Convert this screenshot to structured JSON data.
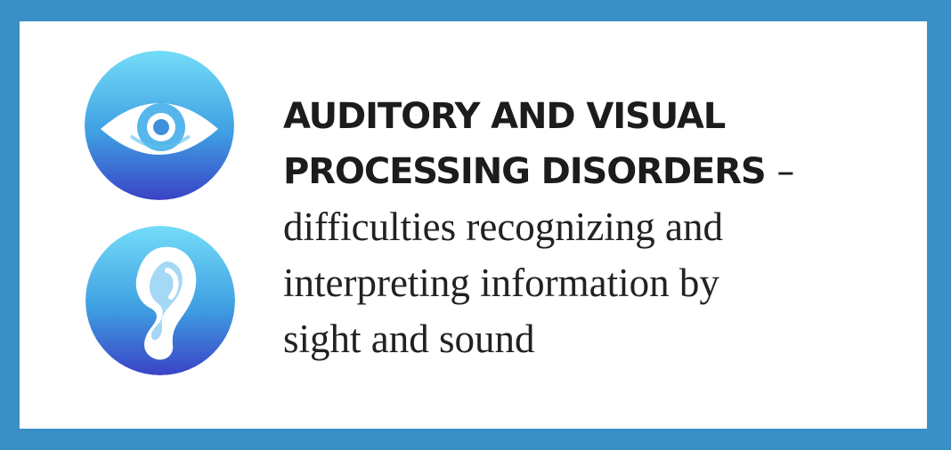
{
  "heading": {
    "line1": "AUDITORY AND VISUAL",
    "line2": "PROCESSING DISORDERS",
    "dash": "–"
  },
  "description": {
    "line1": "difficulties recognizing and",
    "line2": "interpreting information by",
    "line3": "sight and sound"
  },
  "icons": {
    "top": "eye-icon",
    "bottom": "ear-icon"
  },
  "colors": {
    "border": "#3a8fc6",
    "card": "#ffffff",
    "icon_light": "#6fd6f6",
    "icon_mid": "#3a9fe0",
    "icon_dark": "#3a45c8",
    "text": "#1f1f1f"
  }
}
